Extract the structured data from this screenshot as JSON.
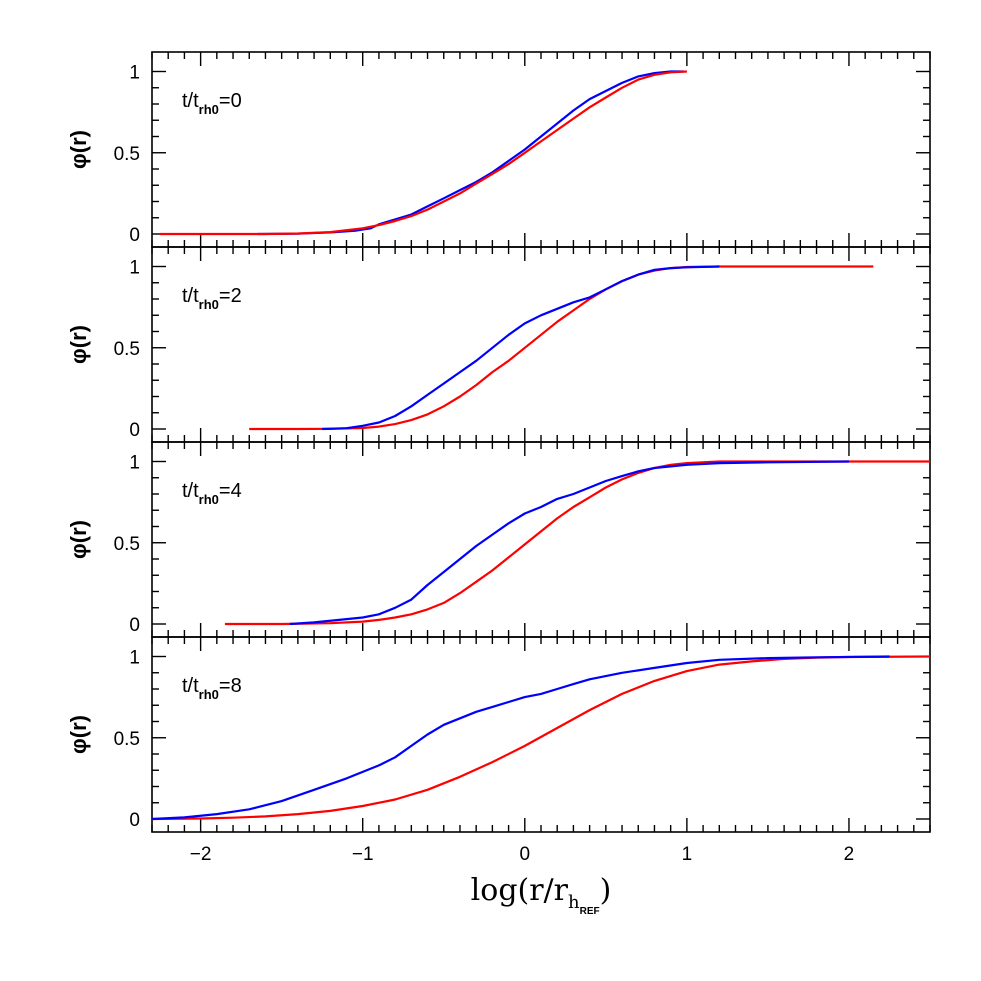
{
  "chart_data": {
    "type": "line",
    "xlabel": {
      "prefix": "log(r/r",
      "sub": "h",
      "subsub": "REF",
      "suffix": ")"
    },
    "xlim": [
      -2.3,
      2.5
    ],
    "xticks": [
      -2,
      -1,
      0,
      1,
      2
    ],
    "xtick_labels": [
      "−2",
      "−1",
      "0",
      "1",
      "2"
    ],
    "ylim": [
      -0.08,
      1.12
    ],
    "yticks": [
      0,
      0.5,
      1
    ],
    "ytick_labels": [
      "0",
      "0.5",
      "1"
    ],
    "ylabel": "φ(r)",
    "colors": {
      "blue": "#0000ff",
      "red": "#ff0000"
    },
    "panels": [
      {
        "annotation": {
          "pre": "t/t",
          "sub": "rh0",
          "post": "=0"
        },
        "series": [
          {
            "color": "blue",
            "points": [
              [
                -1.65,
                0.0
              ],
              [
                -1.4,
                0.002
              ],
              [
                -1.2,
                0.01
              ],
              [
                -1.05,
                0.02
              ],
              [
                -0.95,
                0.035
              ],
              [
                -0.9,
                0.06
              ],
              [
                -0.8,
                0.09
              ],
              [
                -0.7,
                0.12
              ],
              [
                -0.6,
                0.17
              ],
              [
                -0.5,
                0.22
              ],
              [
                -0.4,
                0.27
              ],
              [
                -0.3,
                0.32
              ],
              [
                -0.2,
                0.38
              ],
              [
                -0.1,
                0.45
              ],
              [
                0.0,
                0.52
              ],
              [
                0.1,
                0.6
              ],
              [
                0.2,
                0.68
              ],
              [
                0.3,
                0.76
              ],
              [
                0.4,
                0.83
              ],
              [
                0.5,
                0.88
              ],
              [
                0.6,
                0.93
              ],
              [
                0.7,
                0.97
              ],
              [
                0.8,
                0.99
              ],
              [
                0.9,
                1.0
              ],
              [
                0.98,
                1.0
              ]
            ]
          },
          {
            "color": "red",
            "points": [
              [
                -2.25,
                0.0
              ],
              [
                -1.9,
                0.0
              ],
              [
                -1.6,
                0.0
              ],
              [
                -1.4,
                0.003
              ],
              [
                -1.2,
                0.012
              ],
              [
                -1.0,
                0.035
              ],
              [
                -0.9,
                0.055
              ],
              [
                -0.8,
                0.08
              ],
              [
                -0.7,
                0.11
              ],
              [
                -0.6,
                0.15
              ],
              [
                -0.5,
                0.2
              ],
              [
                -0.4,
                0.25
              ],
              [
                -0.3,
                0.31
              ],
              [
                -0.2,
                0.37
              ],
              [
                -0.1,
                0.43
              ],
              [
                0.0,
                0.5
              ],
              [
                0.1,
                0.57
              ],
              [
                0.2,
                0.64
              ],
              [
                0.3,
                0.71
              ],
              [
                0.4,
                0.78
              ],
              [
                0.5,
                0.84
              ],
              [
                0.6,
                0.9
              ],
              [
                0.7,
                0.95
              ],
              [
                0.8,
                0.98
              ],
              [
                0.9,
                0.995
              ],
              [
                1.0,
                1.0
              ]
            ]
          }
        ]
      },
      {
        "annotation": {
          "pre": "t/t",
          "sub": "rh0",
          "post": "=2"
        },
        "series": [
          {
            "color": "red",
            "points": [
              [
                -1.7,
                0.0
              ],
              [
                -1.4,
                0.0
              ],
              [
                -1.2,
                0.001
              ],
              [
                -1.0,
                0.006
              ],
              [
                -0.9,
                0.015
              ],
              [
                -0.8,
                0.03
              ],
              [
                -0.7,
                0.055
              ],
              [
                -0.6,
                0.09
              ],
              [
                -0.5,
                0.14
              ],
              [
                -0.4,
                0.2
              ],
              [
                -0.3,
                0.27
              ],
              [
                -0.2,
                0.35
              ],
              [
                -0.1,
                0.42
              ],
              [
                0.0,
                0.5
              ],
              [
                0.1,
                0.58
              ],
              [
                0.2,
                0.66
              ],
              [
                0.3,
                0.73
              ],
              [
                0.4,
                0.8
              ],
              [
                0.5,
                0.86
              ],
              [
                0.6,
                0.91
              ],
              [
                0.7,
                0.95
              ],
              [
                0.8,
                0.975
              ],
              [
                0.9,
                0.99
              ],
              [
                1.0,
                0.997
              ],
              [
                1.2,
                1.0
              ],
              [
                1.6,
                1.0
              ],
              [
                2.15,
                1.0
              ]
            ]
          },
          {
            "color": "blue",
            "points": [
              [
                -1.25,
                0.0
              ],
              [
                -1.1,
                0.005
              ],
              [
                -1.0,
                0.02
              ],
              [
                -0.9,
                0.04
              ],
              [
                -0.8,
                0.08
              ],
              [
                -0.7,
                0.14
              ],
              [
                -0.6,
                0.21
              ],
              [
                -0.5,
                0.28
              ],
              [
                -0.4,
                0.35
              ],
              [
                -0.3,
                0.42
              ],
              [
                -0.2,
                0.5
              ],
              [
                -0.1,
                0.58
              ],
              [
                0.0,
                0.65
              ],
              [
                0.1,
                0.7
              ],
              [
                0.2,
                0.74
              ],
              [
                0.3,
                0.78
              ],
              [
                0.4,
                0.81
              ],
              [
                0.5,
                0.86
              ],
              [
                0.6,
                0.91
              ],
              [
                0.7,
                0.95
              ],
              [
                0.8,
                0.98
              ],
              [
                0.9,
                0.99
              ],
              [
                1.0,
                0.995
              ],
              [
                1.2,
                1.0
              ]
            ]
          }
        ]
      },
      {
        "annotation": {
          "pre": "t/t",
          "sub": "rh0",
          "post": "=4"
        },
        "series": [
          {
            "color": "red",
            "points": [
              [
                -1.85,
                0.0
              ],
              [
                -1.5,
                0.0
              ],
              [
                -1.2,
                0.005
              ],
              [
                -1.0,
                0.015
              ],
              [
                -0.9,
                0.025
              ],
              [
                -0.8,
                0.04
              ],
              [
                -0.7,
                0.06
              ],
              [
                -0.6,
                0.09
              ],
              [
                -0.5,
                0.13
              ],
              [
                -0.4,
                0.19
              ],
              [
                -0.3,
                0.26
              ],
              [
                -0.2,
                0.33
              ],
              [
                -0.1,
                0.41
              ],
              [
                0.0,
                0.49
              ],
              [
                0.1,
                0.57
              ],
              [
                0.2,
                0.65
              ],
              [
                0.3,
                0.72
              ],
              [
                0.4,
                0.78
              ],
              [
                0.5,
                0.84
              ],
              [
                0.6,
                0.89
              ],
              [
                0.7,
                0.93
              ],
              [
                0.8,
                0.96
              ],
              [
                0.9,
                0.98
              ],
              [
                1.0,
                0.99
              ],
              [
                1.2,
                1.0
              ],
              [
                1.6,
                1.0
              ],
              [
                2.5,
                1.0
              ]
            ]
          },
          {
            "color": "blue",
            "points": [
              [
                -1.45,
                0.0
              ],
              [
                -1.3,
                0.01
              ],
              [
                -1.1,
                0.03
              ],
              [
                -1.0,
                0.04
              ],
              [
                -0.9,
                0.06
              ],
              [
                -0.8,
                0.1
              ],
              [
                -0.7,
                0.15
              ],
              [
                -0.6,
                0.24
              ],
              [
                -0.5,
                0.32
              ],
              [
                -0.4,
                0.4
              ],
              [
                -0.3,
                0.48
              ],
              [
                -0.2,
                0.55
              ],
              [
                -0.1,
                0.62
              ],
              [
                0.0,
                0.68
              ],
              [
                0.1,
                0.72
              ],
              [
                0.2,
                0.77
              ],
              [
                0.3,
                0.8
              ],
              [
                0.4,
                0.84
              ],
              [
                0.5,
                0.88
              ],
              [
                0.6,
                0.91
              ],
              [
                0.7,
                0.94
              ],
              [
                0.8,
                0.96
              ],
              [
                0.9,
                0.97
              ],
              [
                1.0,
                0.98
              ],
              [
                1.2,
                0.99
              ],
              [
                1.5,
                0.995
              ],
              [
                2.0,
                1.0
              ]
            ]
          }
        ]
      },
      {
        "annotation": {
          "pre": "t/t",
          "sub": "rh0",
          "post": "=8"
        },
        "series": [
          {
            "color": "red",
            "points": [
              [
                -2.3,
                0.0
              ],
              [
                -2.0,
                0.003
              ],
              [
                -1.8,
                0.008
              ],
              [
                -1.6,
                0.016
              ],
              [
                -1.4,
                0.03
              ],
              [
                -1.2,
                0.05
              ],
              [
                -1.0,
                0.08
              ],
              [
                -0.8,
                0.12
              ],
              [
                -0.6,
                0.18
              ],
              [
                -0.4,
                0.26
              ],
              [
                -0.2,
                0.35
              ],
              [
                0.0,
                0.45
              ],
              [
                0.2,
                0.56
              ],
              [
                0.4,
                0.67
              ],
              [
                0.6,
                0.77
              ],
              [
                0.8,
                0.85
              ],
              [
                1.0,
                0.91
              ],
              [
                1.2,
                0.95
              ],
              [
                1.4,
                0.97
              ],
              [
                1.6,
                0.985
              ],
              [
                1.8,
                0.993
              ],
              [
                2.0,
                0.997
              ],
              [
                2.5,
                1.0
              ]
            ]
          },
          {
            "color": "blue",
            "points": [
              [
                -2.3,
                0.0
              ],
              [
                -2.1,
                0.01
              ],
              [
                -1.9,
                0.03
              ],
              [
                -1.7,
                0.06
              ],
              [
                -1.5,
                0.11
              ],
              [
                -1.3,
                0.18
              ],
              [
                -1.1,
                0.25
              ],
              [
                -1.0,
                0.29
              ],
              [
                -0.9,
                0.33
              ],
              [
                -0.8,
                0.38
              ],
              [
                -0.7,
                0.45
              ],
              [
                -0.6,
                0.52
              ],
              [
                -0.5,
                0.58
              ],
              [
                -0.4,
                0.62
              ],
              [
                -0.3,
                0.66
              ],
              [
                -0.2,
                0.69
              ],
              [
                -0.1,
                0.72
              ],
              [
                0.0,
                0.75
              ],
              [
                0.1,
                0.77
              ],
              [
                0.2,
                0.8
              ],
              [
                0.3,
                0.83
              ],
              [
                0.4,
                0.86
              ],
              [
                0.6,
                0.9
              ],
              [
                0.8,
                0.93
              ],
              [
                1.0,
                0.96
              ],
              [
                1.2,
                0.98
              ],
              [
                1.5,
                0.99
              ],
              [
                1.8,
                0.995
              ],
              [
                2.25,
                1.0
              ]
            ]
          }
        ]
      }
    ]
  }
}
